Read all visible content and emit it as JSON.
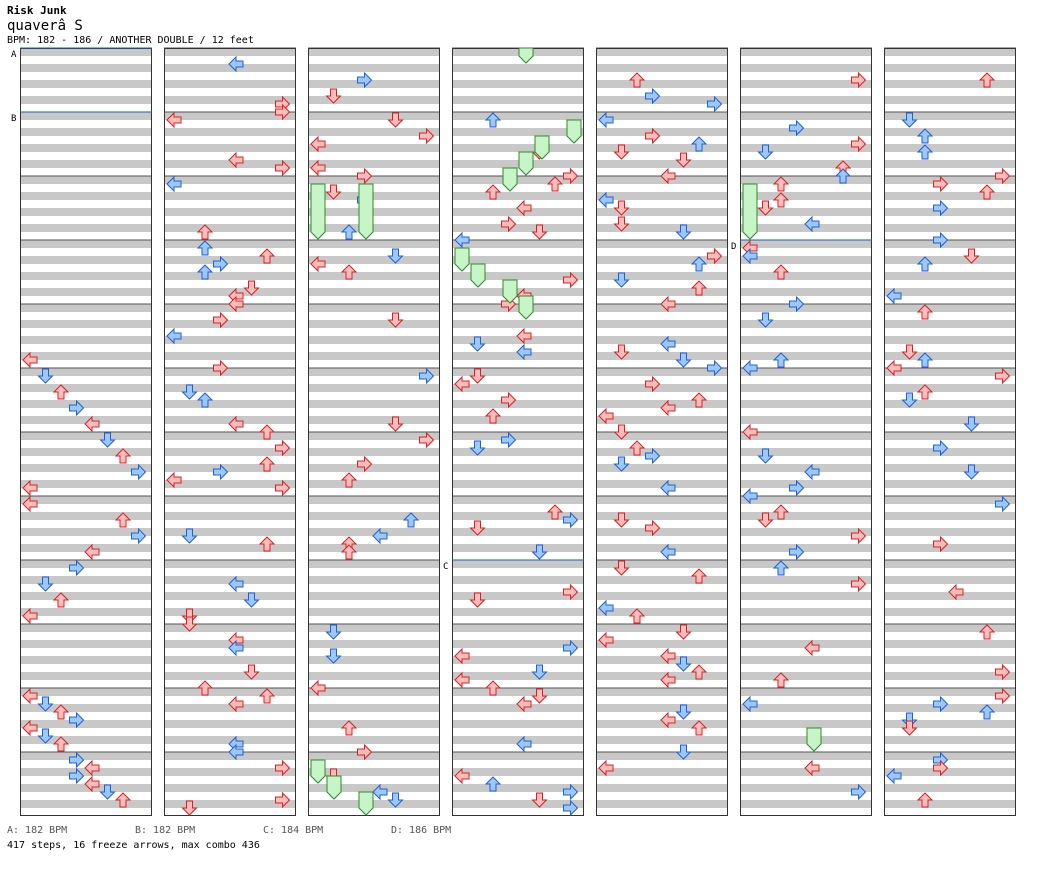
{
  "title": "Risk Junk",
  "artist": "quaverâ S",
  "info": "BPM: 182 - 186 / ANOTHER DOUBLE / 12 feet",
  "bpm_changes": [
    {
      "marker": "A",
      "label": "A: 182 BPM"
    },
    {
      "marker": "B",
      "label": "B: 182 BPM"
    },
    {
      "marker": "C",
      "label": "C: 184 BPM"
    },
    {
      "marker": "D",
      "label": "D: 186 BPM"
    }
  ],
  "stats": "417 steps, 16 freeze arrows, max combo 436",
  "colors": {
    "stripe": "#c8c8c8",
    "red_fill": "#ffbcbc",
    "red_stroke": "#d82020",
    "blue_fill": "#9cc8ff",
    "blue_stroke": "#2060d0",
    "freeze_fill": "#c8f5c8",
    "freeze_stroke": "#2a8a2a",
    "marker_line": "#1e5fb8"
  },
  "columns": [
    {
      "arrows": [
        {
          "l": 0,
          "r": 0
        },
        {
          "l": 0,
          "r": 1
        },
        {
          "l": 0,
          "r": 2
        },
        {
          "l": 0,
          "r": 3
        },
        {
          "l": 0,
          "r": 4
        },
        {
          "l": 0,
          "r": 5
        },
        {
          "l": 0,
          "r": 6
        },
        {
          "l": 0,
          "r": 7
        },
        {
          "l": 0,
          "r": 8
        },
        {
          "l": 0,
          "r": 9
        },
        {
          "l": 0,
          "r": 10
        },
        {
          "l": 0,
          "r": 11
        },
        {
          "l": 0,
          "r": 12
        },
        {
          "l": 0,
          "r": 13
        },
        {
          "l": 0,
          "r": 14
        },
        {
          "l": 0,
          "r": 15
        },
        {
          "l": 0,
          "r": 16
        },
        {
          "l": 0,
          "r": 17
        },
        {
          "l": 0,
          "r": 18
        },
        {
          "l": 0,
          "r": 19
        },
        {
          "l": 0,
          "r": 20
        },
        {
          "l": 0,
          "r": 21
        },
        {
          "l": 0,
          "r": 22
        },
        {
          "l": 0,
          "r": 23
        },
        {
          "l": 0,
          "r": 24
        },
        {
          "l": 0,
          "r": 25
        },
        {
          "l": 0,
          "r": 26
        },
        {
          "l": 0,
          "r": 27
        },
        {
          "l": 0,
          "r": 28
        },
        {
          "l": 0,
          "r": 29
        },
        {
          "l": 0,
          "r": 30
        },
        {
          "l": 0,
          "r": 31
        },
        {
          "l": 0,
          "r": 32
        },
        {
          "l": 0,
          "r": 33
        },
        {
          "l": 0,
          "r": 34
        },
        {
          "l": 0,
          "r": 35
        },
        {
          "l": 0,
          "r": 36
        },
        {
          "l": 0,
          "r": 37
        },
        {
          "l": 0,
          "r": 38
        },
        {
          "l": 0,
          "r": 39
        },
        {
          "l": 0,
          "r": 40
        },
        {
          "l": 0,
          "r": 41
        },
        {
          "l": 0,
          "r": 42
        },
        {
          "l": 0,
          "r": 43
        },
        {
          "l": 0,
          "r": 44
        },
        {
          "l": 0,
          "r": 45
        },
        {
          "l": 0,
          "r": 46
        },
        {
          "l": 0,
          "r": 47
        }
      ]
    }
  ]
}
